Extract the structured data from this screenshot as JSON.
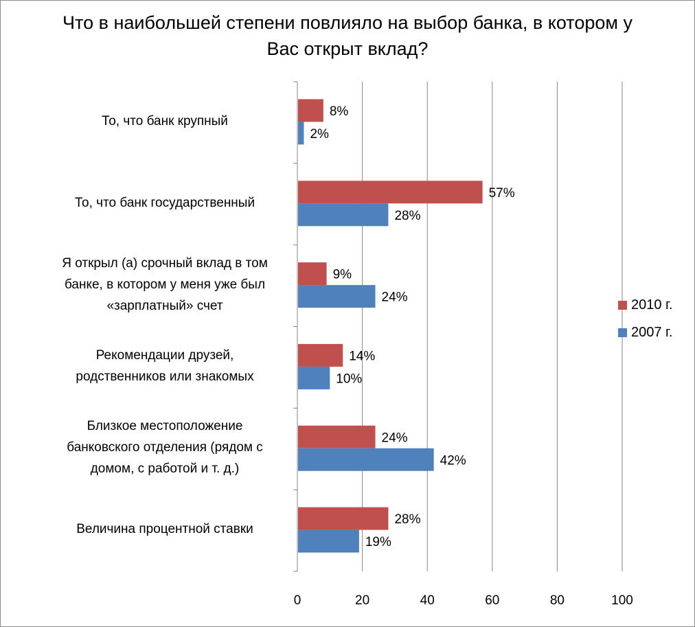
{
  "chart_data": {
    "type": "bar",
    "orientation": "horizontal",
    "title_lines": [
      "Что в наибольшей степени повлияло на выбор банка, в котором у",
      "Вас открыт вклад?"
    ],
    "categories": [
      [
        "То, что банк крупный"
      ],
      [
        "То, что банк государственный"
      ],
      [
        "Я открыл (а) срочный вклад в том",
        "банке, в котором у меня уже был",
        "«зарплатный» счет"
      ],
      [
        "Рекомендации друзей,",
        "родственников или знакомых"
      ],
      [
        "Близкое местоположение",
        "банковского отделения (рядом с",
        "домом, с работой и т. д.)"
      ],
      [
        "Величина процентной ставки"
      ]
    ],
    "series": [
      {
        "name": "2010 г.",
        "color": "#c0504d",
        "values": [
          8,
          57,
          9,
          14,
          24,
          28
        ],
        "labels": [
          "8%",
          "57%",
          "9%",
          "14%",
          "24%",
          "28%"
        ]
      },
      {
        "name": "2007 г.",
        "color": "#4f81bd",
        "values": [
          2,
          28,
          24,
          10,
          42,
          19
        ],
        "labels": [
          "2%",
          "28%",
          "24%",
          "10%",
          "42%",
          "19%"
        ]
      }
    ],
    "xlim": [
      0,
      100
    ],
    "xticks": [
      "0",
      "20",
      "40",
      "60",
      "80",
      "100"
    ],
    "grid": "vertical",
    "legend_position": "right"
  }
}
